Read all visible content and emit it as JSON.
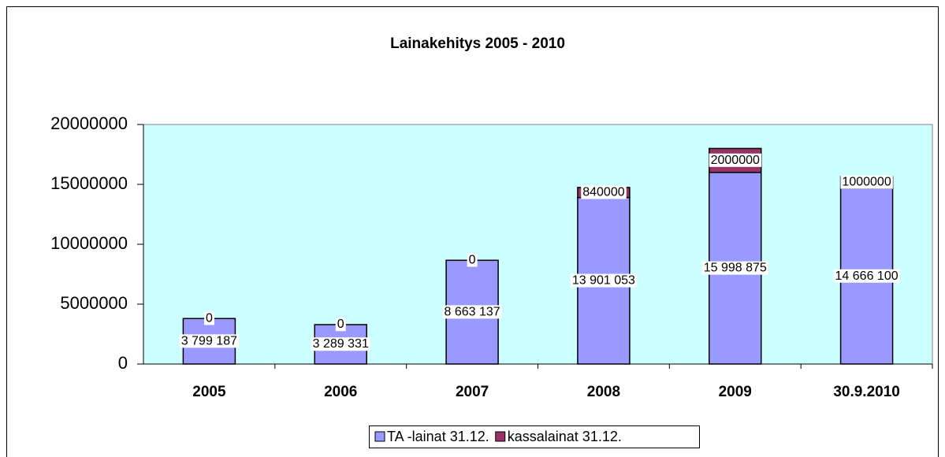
{
  "chart_data": {
    "type": "stacked-bar",
    "title": "Lainakehitys 2005 - 2010",
    "categories": [
      "2005",
      "2006",
      "2007",
      "2008",
      "2009",
      "30.9.2010"
    ],
    "series": [
      {
        "name": "TA -lainat 31.12.",
        "color": "#9999ff",
        "values": [
          3799187,
          3289331,
          8663137,
          13901053,
          15998875,
          14666100
        ],
        "value_labels": [
          "3 799 187",
          "3 289 331",
          "8 663 137",
          "13 901 053",
          "15 998 875",
          "14 666 100"
        ]
      },
      {
        "name": "kassalainat 31.12.",
        "color": "#993366",
        "values": [
          0,
          0,
          0,
          840000,
          2000000,
          1000000
        ]
      }
    ],
    "ylim": [
      0,
      20000000
    ],
    "yticks": [
      0,
      5000000,
      10000000,
      15000000,
      20000000
    ],
    "plot_background": "#ccffff",
    "legend": "bottom"
  }
}
